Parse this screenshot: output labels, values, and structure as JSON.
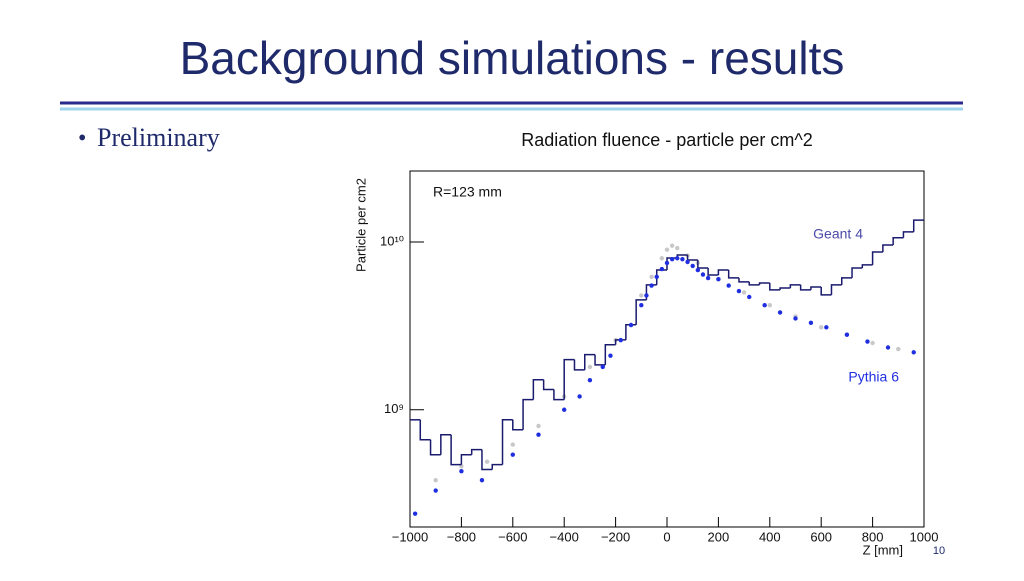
{
  "slide": {
    "title": "Background simulations - results",
    "bullet": "Preliminary",
    "page_number": "10"
  },
  "chart_data": {
    "type": "scatter",
    "title": "Radiation fluence - particle per cm^2",
    "x_label": "Z [mm]",
    "y_label": "Particle per cm2",
    "annotation": "R=123 mm",
    "xlim": [
      -1000,
      1000
    ],
    "xticks": [
      {
        "value": -1000,
        "label": "−1000"
      },
      {
        "value": -800,
        "label": "−800"
      },
      {
        "value": -600,
        "label": "−600"
      },
      {
        "value": -400,
        "label": "−400"
      },
      {
        "value": -200,
        "label": "−200"
      },
      0,
      200,
      400,
      600,
      800,
      1000
    ],
    "ylim": [
      200000000,
      26500000000
    ],
    "log_y": true,
    "yticks": [
      {
        "value": 1000000000,
        "label": "10⁹"
      },
      {
        "value": 10000000000,
        "label": "10¹⁰"
      }
    ],
    "series": [
      {
        "name": "Geant 4",
        "type": "step",
        "color": "#1a1a6e",
        "bins": [
          -1000,
          -960,
          -920,
          -880,
          -840,
          -800,
          -760,
          -720,
          -680,
          -640,
          -600,
          -560,
          -520,
          -480,
          -440,
          -400,
          -360,
          -320,
          -280,
          -240,
          -200,
          -160,
          -120,
          -80,
          -40,
          0,
          40,
          80,
          120,
          160,
          200,
          240,
          280,
          320,
          360,
          400,
          440,
          480,
          520,
          560,
          600,
          640,
          680,
          720,
          760,
          800,
          840,
          880,
          920,
          960,
          1000
        ],
        "values": [
          871000000,
          663000000,
          539000000,
          710000000,
          471000000,
          539000000,
          578000000,
          440000000,
          471000000,
          871000000,
          760000000,
          1150000000,
          1510000000,
          1320000000,
          1150000000,
          1990000000,
          1730000000,
          2130000000,
          1850000000,
          2440000000,
          2610000000,
          3210000000,
          4520000000,
          5550000000,
          6810000000,
          8030000000,
          8370000000,
          7810000000,
          7000000000,
          6360000000,
          6810000000,
          6110000000,
          5780000000,
          5550000000,
          5700000000,
          5180000000,
          5320000000,
          5550000000,
          5180000000,
          5390000000,
          4840000000,
          5550000000,
          6110000000,
          7000000000,
          7300000000,
          8710000000,
          9590000000,
          10600000000,
          11500000000,
          13500000000
        ]
      },
      {
        "name": "Pythia 6",
        "type": "points",
        "color": "#1f2fe0",
        "x": [
          -980,
          -900,
          -800,
          -720,
          -600,
          -500,
          -400,
          -340,
          -300,
          -250,
          -220,
          -180,
          -140,
          -100,
          -80,
          -60,
          -40,
          -20,
          0,
          20,
          40,
          60,
          80,
          100,
          120,
          140,
          160,
          200,
          240,
          280,
          320,
          380,
          440,
          500,
          560,
          620,
          700,
          780,
          860,
          960
        ],
        "values": [
          240000000,
          330000000,
          430000000,
          380000000,
          540000000,
          710000000,
          1000000000,
          1200000000,
          1500000000,
          1800000000,
          2100000000,
          2600000000,
          3200000000,
          4200000000,
          4800000000,
          5500000000,
          6200000000,
          6900000000,
          7500000000,
          7900000000,
          8000000000,
          7900000000,
          7600000000,
          7200000000,
          6800000000,
          6400000000,
          6100000000,
          6000000000,
          5500000000,
          5100000000,
          4700000000,
          4200000000,
          3800000000,
          3500000000,
          3300000000,
          3100000000,
          2800000000,
          2550000000,
          2350000000,
          2200000000
        ]
      },
      {
        "type": "points",
        "color": "#c8c8c8",
        "x": [
          -900,
          -800,
          -700,
          -600,
          -500,
          -400,
          -300,
          -200,
          -100,
          -60,
          -20,
          0,
          20,
          40,
          80,
          120,
          200,
          300,
          400,
          500,
          600,
          700,
          800,
          900
        ],
        "values": [
          380000000,
          460000000,
          490000000,
          620000000,
          800000000,
          1200000000,
          1800000000,
          2600000000,
          4800000000,
          6200000000,
          8000000000,
          9000000000,
          9500000000,
          9200000000,
          8300000000,
          7500000000,
          6000000000,
          5000000000,
          4200000000,
          3600000000,
          3100000000,
          2800000000,
          2500000000,
          2300000000
        ]
      }
    ]
  }
}
